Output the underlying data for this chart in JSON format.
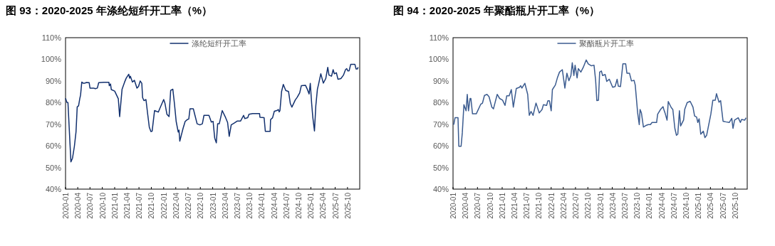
{
  "chart_data": [
    {
      "type": "line",
      "title": "图 93：2020-2025 年涤纶短纤开工率（%）",
      "legend": "top",
      "xlim": [
        "2020-01-01",
        "2025-12-31"
      ],
      "xticks": [
        "2020-01",
        "2020-04",
        "2020-07",
        "2020-10",
        "2021-01",
        "2021-04",
        "2021-07",
        "2021-10",
        "2022-01",
        "2022-04",
        "2022-07",
        "2022-10",
        "2023-01",
        "2023-04",
        "2023-07",
        "2023-10",
        "2024-01",
        "2024-04",
        "2024-07",
        "2024-10",
        "2025-01",
        "2025-04",
        "2025-07",
        "2025-10"
      ],
      "ylim": [
        40,
        110
      ],
      "yticks": [
        {
          "value": 40,
          "label": "40%"
        },
        {
          "value": 50,
          "label": "50%"
        },
        {
          "value": 60,
          "label": "60%"
        },
        {
          "value": 70,
          "label": "70%"
        },
        {
          "value": 80,
          "label": "80%"
        },
        {
          "value": 90,
          "label": "90%"
        },
        {
          "value": 100,
          "label": "100%"
        },
        {
          "value": 110,
          "label": "110%"
        }
      ],
      "x": [
        "2020-01-01",
        "2020-01-11",
        "2020-01-19",
        "2020-02-10",
        "2020-02-22",
        "2020-03-07",
        "2020-03-19",
        "2020-03-28",
        "2020-04-07",
        "2020-04-16",
        "2020-04-22",
        "2020-05-01",
        "2020-05-10",
        "2020-05-25",
        "2020-06-04",
        "2020-06-25",
        "2020-07-01",
        "2020-07-28",
        "2020-08-10",
        "2020-08-25",
        "2020-09-04",
        "2020-10-13",
        "2020-11-19",
        "2020-11-22",
        "2020-12-01",
        "2020-12-07",
        "2021-01-01",
        "2021-01-28",
        "2021-02-07",
        "2021-02-25",
        "2021-03-16",
        "2021-03-28",
        "2021-04-16",
        "2021-04-22",
        "2021-04-28",
        "2021-05-13",
        "2021-05-28",
        "2021-06-16",
        "2021-06-28",
        "2021-07-10",
        "2021-07-22",
        "2021-07-28",
        "2021-08-07",
        "2021-08-22",
        "2021-09-04",
        "2021-09-16",
        "2021-09-28",
        "2021-10-07",
        "2021-10-25",
        "2021-11-22",
        "2021-12-04",
        "2022-01-01",
        "2022-01-10",
        "2022-01-25",
        "2022-02-10",
        "2022-02-22",
        "2022-03-10",
        "2022-03-22",
        "2022-04-04",
        "2022-04-19",
        "2022-04-25",
        "2022-05-01",
        "2022-05-25",
        "2022-06-10",
        "2022-06-25",
        "2022-07-07",
        "2022-07-16",
        "2022-08-10",
        "2022-08-22",
        "2022-09-07",
        "2022-09-28",
        "2022-10-16",
        "2022-10-28",
        "2022-12-04",
        "2022-12-22",
        "2023-01-04",
        "2023-01-16",
        "2023-01-28",
        "2023-02-07",
        "2023-02-19",
        "2023-03-13",
        "2023-04-04",
        "2023-04-22",
        "2023-05-04",
        "2023-05-19",
        "2023-06-10",
        "2023-07-04",
        "2023-07-28",
        "2023-08-19",
        "2023-08-28",
        "2023-09-19",
        "2023-09-28",
        "2023-10-25",
        "2023-12-16",
        "2023-12-19",
        "2024-01-19",
        "2024-01-28",
        "2024-03-04",
        "2024-03-07",
        "2024-03-22",
        "2024-04-04",
        "2024-04-22",
        "2024-05-04",
        "2024-05-10",
        "2024-05-16",
        "2024-05-28",
        "2024-06-10",
        "2024-06-28",
        "2024-07-19",
        "2024-08-01",
        "2024-08-13",
        "2024-09-07",
        "2024-09-22",
        "2024-10-10",
        "2024-10-22",
        "2024-11-22",
        "2024-12-04",
        "2024-12-19",
        "2024-12-28",
        "2025-01-07",
        "2025-01-16",
        "2025-01-28",
        "2025-02-07",
        "2025-02-19",
        "2025-02-28",
        "2025-03-16",
        "2025-04-04",
        "2025-04-22",
        "2025-05-07",
        "2025-05-16",
        "2025-06-04",
        "2025-06-16",
        "2025-06-25",
        "2025-07-10",
        "2025-07-22",
        "2025-08-13",
        "2025-09-01",
        "2025-09-16",
        "2025-09-25",
        "2025-10-04",
        "2025-10-13",
        "2025-10-25",
        "2025-11-25",
        "2025-12-04",
        "2025-12-13",
        "2025-12-19"
      ],
      "series": [
        {
          "name": "涤纶短纤开工率",
          "color": "#12306e",
          "values": [
            82,
            80.1,
            80,
            52.6,
            54.3,
            59.8,
            66.4,
            78,
            78.5,
            81.8,
            83.5,
            89.5,
            89,
            89,
            89.3,
            89.2,
            86.7,
            86.7,
            86.4,
            86.7,
            89.2,
            89.4,
            89.4,
            87.8,
            88.6,
            86,
            85.3,
            81.8,
            73.5,
            86.2,
            89.5,
            91.3,
            93.1,
            91.3,
            92.2,
            89.5,
            90.3,
            86.7,
            87.5,
            90,
            88.9,
            82.3,
            80.9,
            81.4,
            74.6,
            68.6,
            66.6,
            66.8,
            76.3,
            75.6,
            77.4,
            81.4,
            79.8,
            74.6,
            73.5,
            85.6,
            86.2,
            79.6,
            71.3,
            66.4,
            67.3,
            62.2,
            68,
            71.3,
            72.1,
            72.4,
            77.1,
            77.1,
            74.1,
            70.2,
            69.7,
            70.2,
            74.1,
            74.1,
            71,
            71.3,
            63.6,
            61.4,
            70.2,
            70.2,
            76.3,
            73.5,
            70.8,
            64.4,
            69.7,
            70.5,
            71.5,
            71.5,
            74.1,
            72.6,
            73,
            74.6,
            74.9,
            74.9,
            73.2,
            73,
            66.7,
            66.7,
            72.1,
            73,
            76,
            76.3,
            76.8,
            75.7,
            76.3,
            85.1,
            88.4,
            85.6,
            85.1,
            79.6,
            77.9,
            81.2,
            82.5,
            84.5,
            87.8,
            88,
            86.4,
            84,
            88.9,
            79.6,
            73,
            66.9,
            78.5,
            86.2,
            88.6,
            93.3,
            89,
            91.1,
            96.3,
            92.7,
            92.2,
            95.2,
            93.3,
            93.8,
            90.8,
            91.1,
            92.7,
            95.2,
            95.7,
            94.6,
            94.7,
            97.7,
            97.7,
            95.5,
            95.5,
            96.3
          ]
        }
      ]
    },
    {
      "type": "line",
      "title": "图 94：2020-2025 年聚酯瓶片开工率（%）",
      "legend": "top",
      "xlim": [
        "2020-01-01",
        "2025-12-31"
      ],
      "xticks": [
        "2020-01",
        "2020-04",
        "2020-07",
        "2020-10",
        "2021-01",
        "2021-04",
        "2021-07",
        "2021-10",
        "2022-01",
        "2022-04",
        "2022-07",
        "2022-10",
        "2023-01",
        "2023-04",
        "2023-07",
        "2023-10",
        "2024-01",
        "2024-04",
        "2024-07",
        "2024-10",
        "2025-01",
        "2025-04",
        "2025-07",
        "2025-10"
      ],
      "ylim": [
        40,
        110
      ],
      "yticks": [
        {
          "value": 40,
          "label": "40%"
        },
        {
          "value": 50,
          "label": "50%"
        },
        {
          "value": 60,
          "label": "60%"
        },
        {
          "value": 70,
          "label": "70%"
        },
        {
          "value": 80,
          "label": "80%"
        },
        {
          "value": 90,
          "label": "90%"
        },
        {
          "value": 100,
          "label": "100%"
        },
        {
          "value": 110,
          "label": "110%"
        }
      ],
      "x": [
        "2020-01-01",
        "2020-01-07",
        "2020-01-16",
        "2020-02-07",
        "2020-02-13",
        "2020-03-01",
        "2020-03-10",
        "2020-03-22",
        "2020-04-07",
        "2020-04-16",
        "2020-04-25",
        "2020-05-07",
        "2020-05-13",
        "2020-05-25",
        "2020-06-22",
        "2020-07-25",
        "2020-08-07",
        "2020-08-22",
        "2020-09-10",
        "2020-09-25",
        "2020-10-16",
        "2020-10-28",
        "2020-11-10",
        "2020-11-25",
        "2020-12-13",
        "2021-01-04",
        "2021-01-22",
        "2021-02-04",
        "2021-02-22",
        "2021-03-10",
        "2021-03-25",
        "2021-04-16",
        "2021-05-10",
        "2021-05-19",
        "2021-05-28",
        "2021-06-19",
        "2021-07-10",
        "2021-07-22",
        "2021-08-04",
        "2021-08-19",
        "2021-09-10",
        "2021-10-04",
        "2021-10-25",
        "2021-11-04",
        "2021-11-28",
        "2021-12-07",
        "2021-12-19",
        "2022-01-01",
        "2022-01-10",
        "2022-02-01",
        "2022-02-16",
        "2022-03-04",
        "2022-03-25",
        "2022-04-13",
        "2022-04-28",
        "2022-05-13",
        "2022-05-28",
        "2022-06-07",
        "2022-06-19",
        "2022-06-28",
        "2022-07-13",
        "2022-07-22",
        "2022-08-10",
        "2022-08-28",
        "2022-09-19",
        "2022-10-04",
        "2022-10-28",
        "2022-11-16",
        "2022-11-28",
        "2022-12-07",
        "2022-12-19",
        "2022-12-28",
        "2023-01-10",
        "2023-01-19",
        "2023-02-07",
        "2023-02-19",
        "2023-03-10",
        "2023-04-04",
        "2023-04-22",
        "2023-05-07",
        "2023-05-16",
        "2023-06-01",
        "2023-06-19",
        "2023-07-10",
        "2023-07-19",
        "2023-08-07",
        "2023-08-22",
        "2023-09-10",
        "2023-09-19",
        "2023-10-07",
        "2023-10-19",
        "2023-10-25",
        "2023-11-04",
        "2023-11-19",
        "2023-12-07",
        "2023-12-25",
        "2024-01-10",
        "2024-01-22",
        "2024-02-16",
        "2024-02-25",
        "2024-03-04",
        "2024-03-25",
        "2024-04-13",
        "2024-04-19",
        "2024-04-28",
        "2024-05-13",
        "2024-05-22",
        "2024-06-13",
        "2024-06-25",
        "2024-07-10",
        "2024-07-22",
        "2024-08-01",
        "2024-08-13",
        "2024-08-22",
        "2024-09-13",
        "2024-09-22",
        "2024-10-10",
        "2024-11-01",
        "2024-11-22",
        "2024-12-04",
        "2024-12-19",
        "2024-12-28",
        "2025-01-07",
        "2025-01-19",
        "2025-02-07",
        "2025-02-19",
        "2025-03-04",
        "2025-03-16",
        "2025-04-04",
        "2025-04-19",
        "2025-05-07",
        "2025-05-16",
        "2025-06-04",
        "2025-06-16",
        "2025-07-04",
        "2025-07-25",
        "2025-08-19",
        "2025-09-07",
        "2025-09-16",
        "2025-09-28",
        "2025-10-25",
        "2025-11-10",
        "2025-11-19",
        "2025-12-13",
        "2025-12-22"
      ],
      "series": [
        {
          "name": "聚酯瓶片开工率",
          "color": "#3b5b8f",
          "values": [
            70,
            70,
            73,
            73,
            59.8,
            59.8,
            66,
            79,
            76.2,
            83.8,
            76.2,
            81.9,
            81.9,
            74.8,
            74.8,
            79.2,
            79.7,
            83.3,
            83.8,
            82.7,
            77.9,
            77.1,
            80.2,
            83.8,
            81.9,
            81.1,
            78.7,
            83.1,
            83.1,
            86,
            77.9,
            86.5,
            87.1,
            87.8,
            86.7,
            88.9,
            83.8,
            74.1,
            75.9,
            74.1,
            79.8,
            75.2,
            76.8,
            79,
            78.7,
            80.8,
            80.8,
            76.2,
            86,
            88.1,
            91.4,
            94.1,
            95.2,
            86.7,
            93.6,
            90.1,
            92.5,
            98.4,
            92.5,
            97.3,
            91.4,
            95.7,
            94.1,
            96.3,
            99.7,
            97.9,
            97,
            97.3,
            90.3,
            80.9,
            81.1,
            94.1,
            94.6,
            92.5,
            93,
            89.8,
            90.8,
            87.1,
            87.4,
            90.8,
            87.6,
            87.4,
            97.9,
            97.9,
            93.6,
            93.6,
            90,
            90.3,
            88.1,
            75.2,
            69.8,
            76.8,
            75.2,
            68.7,
            69.4,
            69.8,
            69.8,
            70.8,
            70.8,
            70.8,
            74.6,
            76.8,
            78.1,
            76.8,
            75.2,
            71.9,
            80.5,
            77.7,
            76.8,
            68.1,
            64.9,
            65.4,
            76.2,
            69.2,
            71.9,
            77,
            80,
            80.6,
            77.9,
            73.8,
            73.3,
            70.8,
            72.5,
            65.4,
            66.8,
            63.8,
            64.9,
            68.7,
            74.6,
            81.1,
            81.1,
            84.1,
            80.2,
            80.9,
            71.4,
            71.1,
            70.8,
            72.7,
            68.1,
            71.9,
            73,
            70.8,
            72.2,
            71.9,
            73
          ]
        }
      ]
    }
  ]
}
